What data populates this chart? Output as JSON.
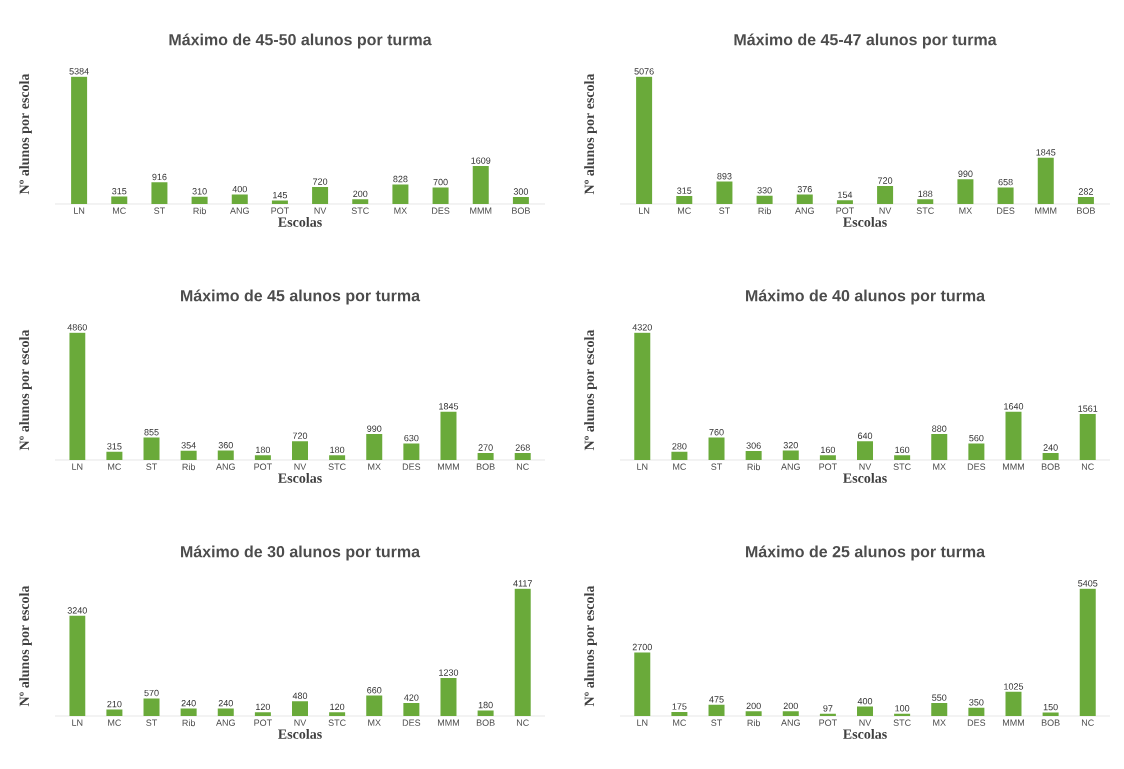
{
  "chart_data": [
    {
      "type": "bar",
      "title": "Máximo de 45-50 alunos por turma",
      "xlabel": "Escolas",
      "ylabel": "Nº alunos por escola",
      "categories": [
        "LN",
        "MC",
        "ST",
        "Rib",
        "ANG",
        "POT",
        "NV",
        "STC",
        "MX",
        "DES",
        "MMM",
        "BOB"
      ],
      "values": [
        5384,
        315,
        916,
        310,
        400,
        145,
        720,
        200,
        828,
        700,
        1609,
        300
      ],
      "color": "#6aaa3a",
      "data_labels": true,
      "tick_labels": "x"
    },
    {
      "type": "bar",
      "title": "Máximo de 45-47 alunos por turma",
      "xlabel": "Escolas",
      "ylabel": "Nº alunos por escola",
      "categories": [
        "LN",
        "MC",
        "ST",
        "Rib",
        "ANG",
        "POT",
        "NV",
        "STC",
        "MX",
        "DES",
        "MMM",
        "BOB"
      ],
      "values": [
        5076,
        315,
        893,
        330,
        376,
        154,
        720,
        188,
        990,
        658,
        1845,
        282
      ],
      "color": "#6aaa3a",
      "data_labels": true,
      "tick_labels": "x"
    },
    {
      "type": "bar",
      "title": "Máximo de 45 alunos por turma",
      "xlabel": "Escolas",
      "ylabel": "Nº alunos por escola",
      "categories": [
        "LN",
        "MC",
        "ST",
        "Rib",
        "ANG",
        "POT",
        "NV",
        "STC",
        "MX",
        "DES",
        "MMM",
        "BOB",
        "NC"
      ],
      "values": [
        4860,
        315,
        855,
        354,
        360,
        180,
        720,
        180,
        990,
        630,
        1845,
        270,
        268
      ],
      "color": "#6aaa3a",
      "data_labels": true,
      "tick_labels": "x"
    },
    {
      "type": "bar",
      "title": "Máximo de 40 alunos por turma",
      "xlabel": "Escolas",
      "ylabel": "Nº alunos por escola",
      "categories": [
        "LN",
        "MC",
        "ST",
        "Rib",
        "ANG",
        "POT",
        "NV",
        "STC",
        "MX",
        "DES",
        "MMM",
        "BOB",
        "NC"
      ],
      "values": [
        4320,
        280,
        760,
        306,
        320,
        160,
        640,
        160,
        880,
        560,
        1640,
        240,
        1561
      ],
      "color": "#6aaa3a",
      "data_labels": true,
      "tick_labels": "x"
    },
    {
      "type": "bar",
      "title": "Máximo de 30 alunos por turma",
      "xlabel": "Escolas",
      "ylabel": "Nº alunos por escola",
      "categories": [
        "LN",
        "MC",
        "ST",
        "Rib",
        "ANG",
        "POT",
        "NV",
        "STC",
        "MX",
        "DES",
        "MMM",
        "BOB",
        "NC"
      ],
      "values": [
        3240,
        210,
        570,
        240,
        240,
        120,
        480,
        120,
        660,
        420,
        1230,
        180,
        4117
      ],
      "color": "#6aaa3a",
      "data_labels": true,
      "tick_labels": "x"
    },
    {
      "type": "bar",
      "title": "Máximo de 25 alunos por turma",
      "xlabel": "Escolas",
      "ylabel": "Nº alunos por escola",
      "categories": [
        "LN",
        "MC",
        "ST",
        "Rib",
        "ANG",
        "POT",
        "NV",
        "STC",
        "MX",
        "DES",
        "MMM",
        "BOB",
        "NC"
      ],
      "values": [
        2700,
        175,
        475,
        200,
        200,
        97,
        400,
        100,
        550,
        350,
        1025,
        150,
        5405
      ],
      "color": "#6aaa3a",
      "data_labels": true,
      "tick_labels": "x"
    }
  ]
}
